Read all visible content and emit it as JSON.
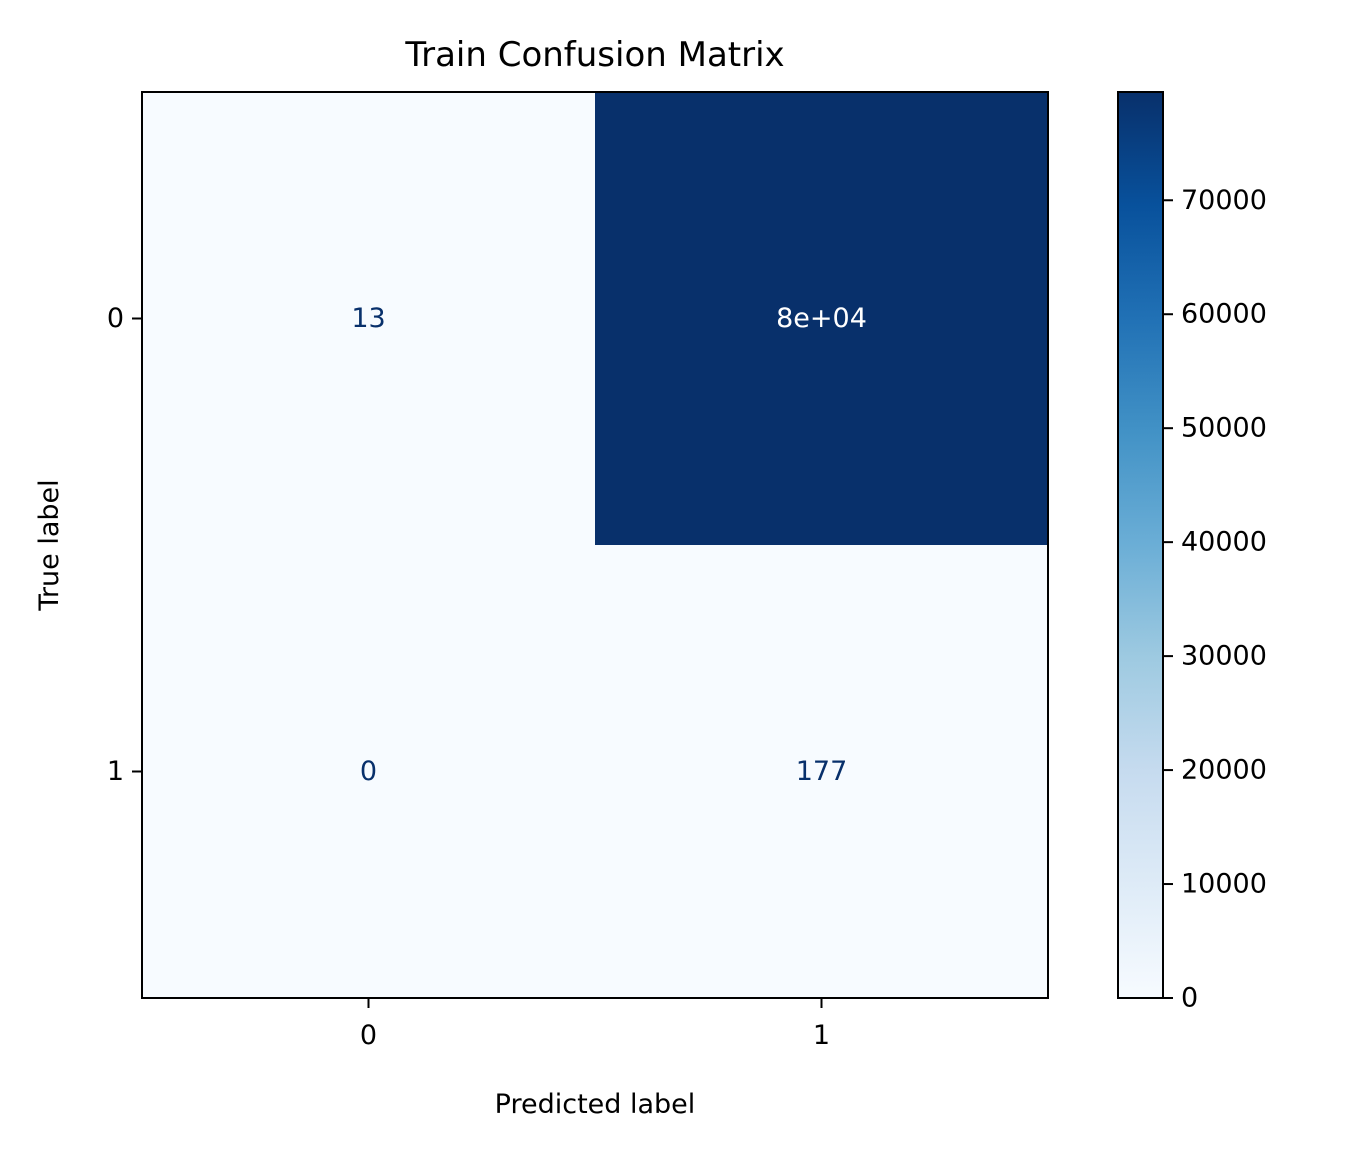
{
  "chart_data": {
    "type": "heatmap",
    "title": "Train Confusion Matrix",
    "xlabel": "Predicted label",
    "ylabel": "True label",
    "x_categories": [
      "0",
      "1"
    ],
    "y_categories": [
      "0",
      "1"
    ],
    "matrix": [
      [
        13,
        79500
      ],
      [
        0,
        177
      ]
    ],
    "cell_labels": [
      [
        "13",
        "8e+04"
      ],
      [
        "0",
        "177"
      ]
    ],
    "colormap": "Blues",
    "color_low": "#f7fbff",
    "color_high": "#08306b",
    "text_dark": "#08306b",
    "text_light": "#ffffff",
    "colorbar": {
      "range": [
        0,
        79500
      ],
      "ticks": [
        0,
        10000,
        20000,
        30000,
        40000,
        50000,
        60000,
        70000
      ],
      "tick_labels": [
        "0",
        "10000",
        "20000",
        "30000",
        "40000",
        "50000",
        "60000",
        "70000"
      ]
    }
  }
}
